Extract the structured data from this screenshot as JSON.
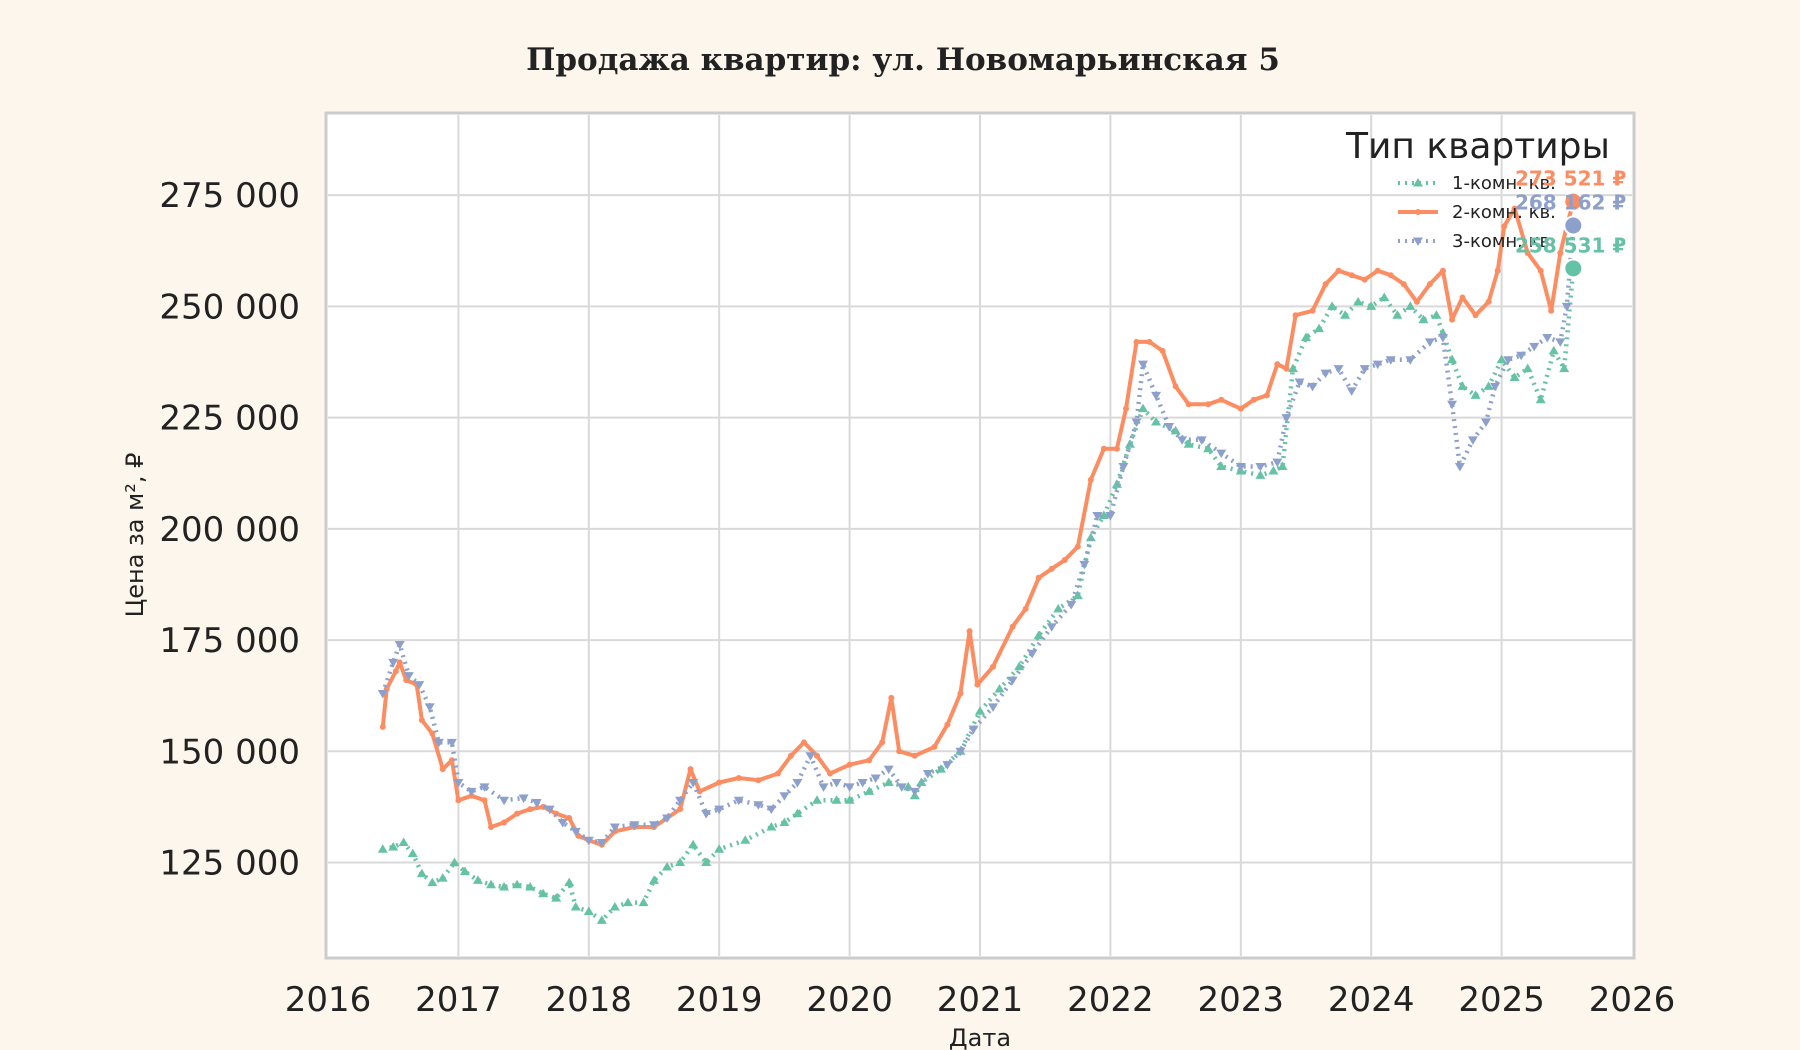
{
  "chart_data": {
    "type": "line",
    "title": "Продажа квартир: ул. Новомарьинская 5",
    "xlabel": "Дата",
    "ylabel": "Цена за м², ₽",
    "xlim": [
      2016.0,
      2026.0
    ],
    "ylim": [
      104000,
      293000
    ],
    "x_ticks": [
      "2016",
      "2017",
      "2018",
      "2019",
      "2020",
      "2021",
      "2022",
      "2023",
      "2024",
      "2025",
      "2026"
    ],
    "y_ticks": [
      "125 000",
      "150 000",
      "175 000",
      "200 000",
      "225 000",
      "250 000",
      "275 000"
    ],
    "y_tick_values": [
      125000,
      150000,
      175000,
      200000,
      225000,
      250000,
      275000
    ],
    "grid": true,
    "legend": {
      "title": "Тип квартиры",
      "placement": "top-right"
    },
    "series": [
      {
        "name": "1-комн. кв.",
        "color": "#66c2a5",
        "line_style": "dotted",
        "marker": "triangle-up",
        "end_label": "258 531 ₽",
        "points": [
          [
            2016.42,
            128000
          ],
          [
            2016.5,
            128500
          ],
          [
            2016.58,
            129500
          ],
          [
            2016.65,
            127000
          ],
          [
            2016.72,
            122500
          ],
          [
            2016.8,
            120500
          ],
          [
            2016.88,
            121500
          ],
          [
            2016.97,
            125000
          ],
          [
            2017.05,
            123000
          ],
          [
            2017.15,
            121000
          ],
          [
            2017.25,
            120000
          ],
          [
            2017.35,
            119500
          ],
          [
            2017.45,
            120000
          ],
          [
            2017.55,
            119500
          ],
          [
            2017.65,
            118000
          ],
          [
            2017.75,
            117000
          ],
          [
            2017.85,
            120500
          ],
          [
            2017.9,
            115000
          ],
          [
            2018.0,
            114000
          ],
          [
            2018.1,
            112000
          ],
          [
            2018.2,
            115000
          ],
          [
            2018.3,
            116000
          ],
          [
            2018.42,
            116000
          ],
          [
            2018.5,
            121000
          ],
          [
            2018.6,
            124000
          ],
          [
            2018.7,
            125000
          ],
          [
            2018.8,
            129000
          ],
          [
            2018.9,
            125000
          ],
          [
            2019.0,
            128000
          ],
          [
            2019.2,
            130000
          ],
          [
            2019.4,
            133000
          ],
          [
            2019.5,
            134000
          ],
          [
            2019.6,
            136000
          ],
          [
            2019.75,
            139000
          ],
          [
            2019.9,
            139000
          ],
          [
            2020.0,
            139000
          ],
          [
            2020.15,
            141000
          ],
          [
            2020.3,
            143000
          ],
          [
            2020.45,
            142000
          ],
          [
            2020.5,
            140000
          ],
          [
            2020.55,
            143000
          ],
          [
            2020.7,
            146000
          ],
          [
            2020.85,
            150000
          ],
          [
            2021.0,
            159000
          ],
          [
            2021.15,
            164000
          ],
          [
            2021.3,
            169000
          ],
          [
            2021.45,
            176000
          ],
          [
            2021.6,
            182000
          ],
          [
            2021.75,
            185000
          ],
          [
            2021.85,
            198000
          ],
          [
            2021.95,
            203000
          ],
          [
            2022.05,
            210000
          ],
          [
            2022.15,
            219000
          ],
          [
            2022.25,
            227000
          ],
          [
            2022.35,
            224000
          ],
          [
            2022.5,
            222000
          ],
          [
            2022.6,
            219000
          ],
          [
            2022.75,
            218000
          ],
          [
            2022.85,
            214000
          ],
          [
            2023.0,
            213000
          ],
          [
            2023.15,
            212000
          ],
          [
            2023.25,
            213000
          ],
          [
            2023.32,
            214000
          ],
          [
            2023.4,
            236000
          ],
          [
            2023.5,
            243000
          ],
          [
            2023.6,
            245000
          ],
          [
            2023.7,
            250000
          ],
          [
            2023.8,
            248000
          ],
          [
            2023.9,
            251000
          ],
          [
            2024.0,
            250000
          ],
          [
            2024.1,
            252000
          ],
          [
            2024.2,
            248000
          ],
          [
            2024.3,
            250000
          ],
          [
            2024.4,
            247000
          ],
          [
            2024.5,
            248000
          ],
          [
            2024.55,
            244000
          ],
          [
            2024.62,
            238000
          ],
          [
            2024.7,
            232000
          ],
          [
            2024.8,
            230000
          ],
          [
            2024.9,
            232000
          ],
          [
            2025.0,
            238000
          ],
          [
            2025.1,
            234000
          ],
          [
            2025.2,
            236000
          ],
          [
            2025.3,
            229000
          ],
          [
            2025.4,
            240000
          ],
          [
            2025.48,
            236000
          ],
          [
            2025.55,
            258531
          ]
        ]
      },
      {
        "name": "2-комн. кв.",
        "color": "#fc8d62",
        "line_style": "solid",
        "marker": "dot",
        "end_label": "273 521 ₽",
        "points": [
          [
            2016.42,
            155500
          ],
          [
            2016.45,
            164000
          ],
          [
            2016.52,
            168000
          ],
          [
            2016.55,
            170000
          ],
          [
            2016.6,
            166000
          ],
          [
            2016.68,
            165000
          ],
          [
            2016.72,
            157000
          ],
          [
            2016.8,
            154000
          ],
          [
            2016.88,
            146000
          ],
          [
            2016.95,
            148000
          ],
          [
            2017.0,
            139000
          ],
          [
            2017.1,
            140000
          ],
          [
            2017.2,
            139000
          ],
          [
            2017.25,
            133000
          ],
          [
            2017.35,
            134000
          ],
          [
            2017.45,
            136000
          ],
          [
            2017.55,
            137000
          ],
          [
            2017.65,
            137500
          ],
          [
            2017.75,
            136000
          ],
          [
            2017.85,
            135000
          ],
          [
            2017.92,
            131000
          ],
          [
            2018.0,
            130000
          ],
          [
            2018.1,
            129000
          ],
          [
            2018.2,
            132000
          ],
          [
            2018.35,
            133000
          ],
          [
            2018.5,
            133000
          ],
          [
            2018.6,
            135000
          ],
          [
            2018.7,
            137000
          ],
          [
            2018.78,
            146000
          ],
          [
            2018.85,
            141000
          ],
          [
            2019.0,
            143000
          ],
          [
            2019.15,
            144000
          ],
          [
            2019.3,
            143500
          ],
          [
            2019.45,
            145000
          ],
          [
            2019.55,
            149000
          ],
          [
            2019.65,
            152000
          ],
          [
            2019.75,
            149000
          ],
          [
            2019.85,
            145000
          ],
          [
            2020.0,
            147000
          ],
          [
            2020.15,
            148000
          ],
          [
            2020.25,
            152000
          ],
          [
            2020.32,
            162000
          ],
          [
            2020.38,
            150000
          ],
          [
            2020.5,
            149000
          ],
          [
            2020.65,
            151000
          ],
          [
            2020.75,
            156000
          ],
          [
            2020.85,
            163000
          ],
          [
            2020.92,
            177000
          ],
          [
            2020.98,
            165000
          ],
          [
            2021.1,
            169000
          ],
          [
            2021.25,
            178000
          ],
          [
            2021.35,
            182000
          ],
          [
            2021.45,
            189000
          ],
          [
            2021.55,
            191000
          ],
          [
            2021.65,
            193000
          ],
          [
            2021.75,
            196000
          ],
          [
            2021.85,
            211000
          ],
          [
            2021.95,
            218000
          ],
          [
            2022.05,
            218000
          ],
          [
            2022.12,
            227000
          ],
          [
            2022.2,
            242000
          ],
          [
            2022.3,
            242000
          ],
          [
            2022.4,
            240000
          ],
          [
            2022.5,
            232000
          ],
          [
            2022.6,
            228000
          ],
          [
            2022.75,
            228000
          ],
          [
            2022.85,
            229000
          ],
          [
            2023.0,
            227000
          ],
          [
            2023.1,
            229000
          ],
          [
            2023.2,
            230000
          ],
          [
            2023.28,
            237000
          ],
          [
            2023.35,
            236000
          ],
          [
            2023.42,
            248000
          ],
          [
            2023.55,
            249000
          ],
          [
            2023.65,
            255000
          ],
          [
            2023.75,
            258000
          ],
          [
            2023.85,
            257000
          ],
          [
            2023.95,
            256000
          ],
          [
            2024.05,
            258000
          ],
          [
            2024.15,
            257000
          ],
          [
            2024.25,
            255000
          ],
          [
            2024.35,
            251000
          ],
          [
            2024.45,
            255000
          ],
          [
            2024.55,
            258000
          ],
          [
            2024.62,
            247000
          ],
          [
            2024.7,
            252000
          ],
          [
            2024.8,
            248000
          ],
          [
            2024.9,
            251000
          ],
          [
            2024.97,
            258000
          ],
          [
            2025.02,
            268000
          ],
          [
            2025.1,
            272000
          ],
          [
            2025.2,
            262000
          ],
          [
            2025.3,
            258000
          ],
          [
            2025.38,
            249000
          ],
          [
            2025.45,
            262000
          ],
          [
            2025.5,
            268000
          ],
          [
            2025.55,
            273521
          ]
        ]
      },
      {
        "name": "3-комн. кв.",
        "color": "#8da0cb",
        "line_style": "dotted",
        "marker": "triangle-down",
        "end_label": "268 162 ₽",
        "points": [
          [
            2016.42,
            163000
          ],
          [
            2016.5,
            170000
          ],
          [
            2016.55,
            174000
          ],
          [
            2016.62,
            167000
          ],
          [
            2016.7,
            165000
          ],
          [
            2016.78,
            160000
          ],
          [
            2016.85,
            152000
          ],
          [
            2016.95,
            152000
          ],
          [
            2017.0,
            143000
          ],
          [
            2017.1,
            141000
          ],
          [
            2017.2,
            142000
          ],
          [
            2017.35,
            139000
          ],
          [
            2017.5,
            139500
          ],
          [
            2017.6,
            138500
          ],
          [
            2017.7,
            137000
          ],
          [
            2017.8,
            134000
          ],
          [
            2017.9,
            132000
          ],
          [
            2018.0,
            130000
          ],
          [
            2018.1,
            129500
          ],
          [
            2018.2,
            133000
          ],
          [
            2018.35,
            133500
          ],
          [
            2018.5,
            133500
          ],
          [
            2018.6,
            135000
          ],
          [
            2018.7,
            139000
          ],
          [
            2018.8,
            143000
          ],
          [
            2018.9,
            136000
          ],
          [
            2019.0,
            137000
          ],
          [
            2019.15,
            139000
          ],
          [
            2019.3,
            138000
          ],
          [
            2019.4,
            137000
          ],
          [
            2019.5,
            140000
          ],
          [
            2019.6,
            143000
          ],
          [
            2019.7,
            149000
          ],
          [
            2019.8,
            142000
          ],
          [
            2019.9,
            143000
          ],
          [
            2020.0,
            142000
          ],
          [
            2020.1,
            143000
          ],
          [
            2020.2,
            144000
          ],
          [
            2020.3,
            146000
          ],
          [
            2020.4,
            142000
          ],
          [
            2020.5,
            141000
          ],
          [
            2020.6,
            145000
          ],
          [
            2020.75,
            147000
          ],
          [
            2020.85,
            150000
          ],
          [
            2020.95,
            155000
          ],
          [
            2021.1,
            160000
          ],
          [
            2021.25,
            166000
          ],
          [
            2021.4,
            172000
          ],
          [
            2021.55,
            178000
          ],
          [
            2021.7,
            183000
          ],
          [
            2021.8,
            192000
          ],
          [
            2021.9,
            203000
          ],
          [
            2022.0,
            203000
          ],
          [
            2022.1,
            214000
          ],
          [
            2022.2,
            224000
          ],
          [
            2022.25,
            237000
          ],
          [
            2022.35,
            230000
          ],
          [
            2022.45,
            223000
          ],
          [
            2022.55,
            220000
          ],
          [
            2022.7,
            220000
          ],
          [
            2022.85,
            217000
          ],
          [
            2023.0,
            214000
          ],
          [
            2023.15,
            214000
          ],
          [
            2023.28,
            215000
          ],
          [
            2023.35,
            225000
          ],
          [
            2023.45,
            233000
          ],
          [
            2023.55,
            232000
          ],
          [
            2023.65,
            235000
          ],
          [
            2023.75,
            236000
          ],
          [
            2023.85,
            231000
          ],
          [
            2023.95,
            236000
          ],
          [
            2024.05,
            237000
          ],
          [
            2024.15,
            238000
          ],
          [
            2024.3,
            238000
          ],
          [
            2024.45,
            242000
          ],
          [
            2024.55,
            243000
          ],
          [
            2024.62,
            228000
          ],
          [
            2024.68,
            214000
          ],
          [
            2024.78,
            220000
          ],
          [
            2024.88,
            224000
          ],
          [
            2024.95,
            232000
          ],
          [
            2025.05,
            238000
          ],
          [
            2025.15,
            239000
          ],
          [
            2025.25,
            241000
          ],
          [
            2025.35,
            243000
          ],
          [
            2025.45,
            242000
          ],
          [
            2025.5,
            250000
          ],
          [
            2025.55,
            268162
          ]
        ]
      }
    ]
  }
}
